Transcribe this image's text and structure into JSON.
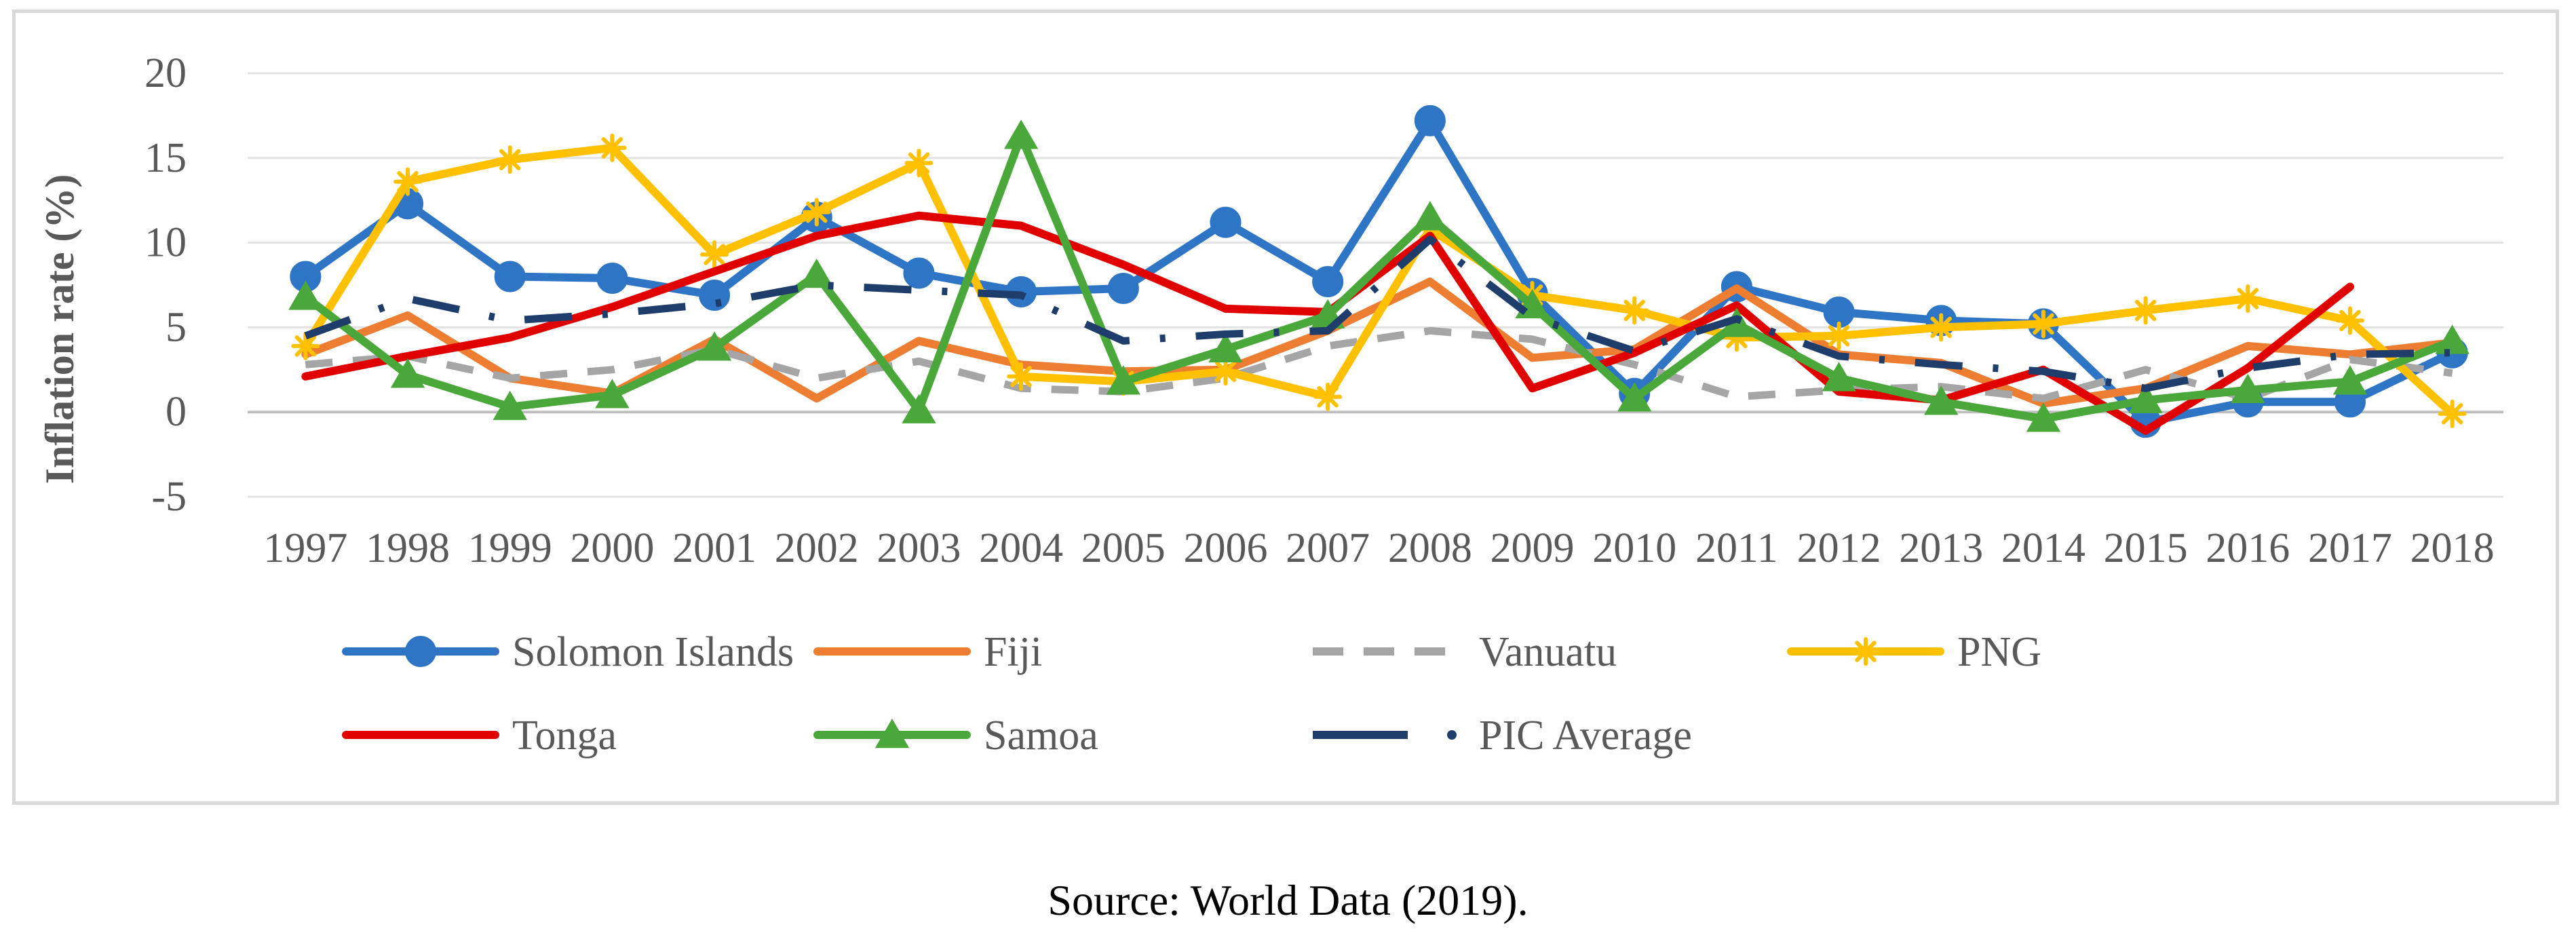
{
  "source_note": "Source: World Data (2019).",
  "chart_data": {
    "type": "line",
    "title": "",
    "xlabel": "",
    "ylabel": "Inflation rate (%)",
    "ylim": [
      -5,
      20
    ],
    "yticks": [
      -5,
      0,
      5,
      10,
      15,
      20
    ],
    "grid": "horizontal",
    "legend_position": "bottom",
    "categories": [
      "1997",
      "1998",
      "1999",
      "2000",
      "2001",
      "2002",
      "2003",
      "2004",
      "2005",
      "2006",
      "2007",
      "2008",
      "2009",
      "2010",
      "2011",
      "2012",
      "2013",
      "2014",
      "2015",
      "2016",
      "2017",
      "2018"
    ],
    "series": [
      {
        "name": "Solomon Islands",
        "color": "#2e75c6",
        "marker": "circle",
        "dash": "solid",
        "values": [
          8.0,
          12.3,
          8.0,
          7.9,
          6.9,
          11.5,
          8.2,
          7.1,
          7.3,
          11.2,
          7.7,
          17.2,
          7.0,
          1.1,
          7.4,
          5.9,
          5.4,
          5.2,
          -0.6,
          0.6,
          0.6,
          3.5
        ]
      },
      {
        "name": "Fiji",
        "color": "#ed7d31",
        "marker": "none",
        "dash": "solid",
        "values": [
          3.4,
          5.7,
          2.0,
          1.1,
          4.3,
          0.8,
          4.2,
          2.8,
          2.4,
          2.5,
          4.8,
          7.7,
          3.2,
          3.7,
          7.3,
          3.4,
          2.9,
          0.5,
          1.4,
          3.9,
          3.4,
          4.1
        ]
      },
      {
        "name": "Vanuatu",
        "color": "#a5a5a5",
        "marker": "none",
        "dash": "dashed",
        "values": [
          2.8,
          3.3,
          2.0,
          2.5,
          3.7,
          2.0,
          3.0,
          1.4,
          1.2,
          2.0,
          3.9,
          4.8,
          4.3,
          2.8,
          0.9,
          1.3,
          1.5,
          0.8,
          2.5,
          0.8,
          3.1,
          2.3
        ]
      },
      {
        "name": "PNG",
        "color": "#ffc000",
        "marker": "star",
        "dash": "solid",
        "values": [
          3.9,
          13.6,
          14.9,
          15.6,
          9.3,
          11.8,
          14.7,
          2.1,
          1.8,
          2.4,
          0.9,
          10.8,
          6.9,
          6.0,
          4.4,
          4.5,
          5.0,
          5.2,
          6.0,
          6.7,
          5.4,
          -0.1
        ]
      },
      {
        "name": "Tonga",
        "color": "#e00000",
        "marker": "none",
        "dash": "solid",
        "values": [
          2.1,
          3.3,
          4.4,
          6.2,
          8.3,
          10.4,
          11.6,
          11.0,
          8.7,
          6.1,
          5.9,
          10.4,
          1.4,
          3.5,
          6.3,
          1.2,
          0.7,
          2.5,
          -1.1,
          2.6,
          7.4,
          null
        ]
      },
      {
        "name": "Samoa",
        "color": "#4aa83a",
        "marker": "triangle",
        "dash": "solid",
        "values": [
          6.8,
          2.2,
          0.3,
          1.0,
          3.8,
          8.1,
          0.1,
          16.3,
          1.8,
          3.7,
          5.7,
          11.5,
          6.3,
          0.8,
          5.2,
          2.0,
          0.6,
          -0.4,
          0.7,
          1.3,
          1.8,
          4.2
        ]
      },
      {
        "name": "PIC Average",
        "color": "#1f3d6b",
        "marker": "none",
        "dash": "longdashdot",
        "values": [
          4.5,
          6.7,
          5.4,
          5.8,
          6.4,
          7.5,
          7.2,
          6.9,
          4.2,
          4.6,
          4.8,
          10.2,
          5.6,
          3.6,
          5.5,
          3.3,
          2.8,
          2.4,
          1.4,
          2.6,
          3.4,
          3.5
        ]
      }
    ]
  }
}
